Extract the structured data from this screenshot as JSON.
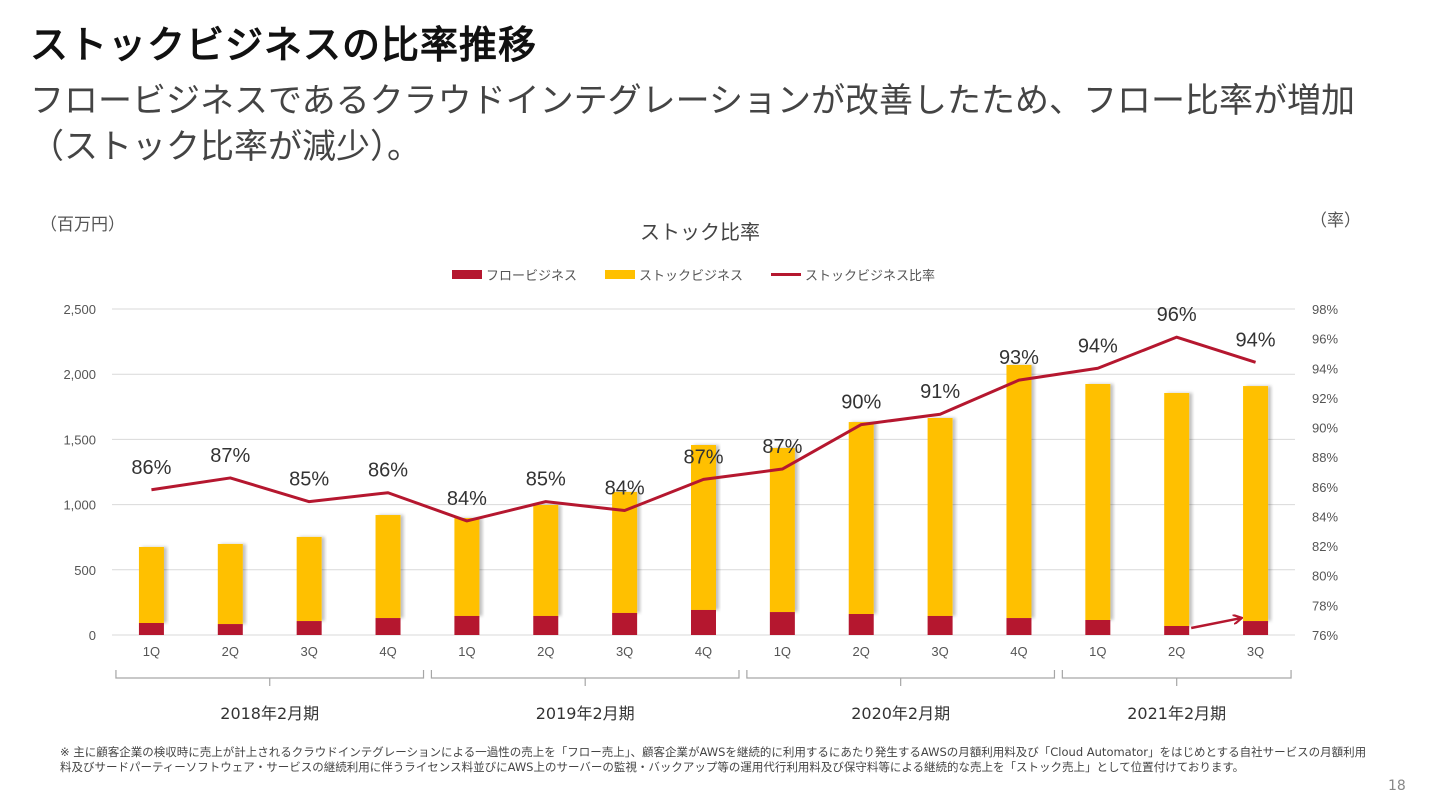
{
  "slide": {
    "title": "ストックビジネスの比率推移",
    "subtitle": "フロービジネスであるクラウドインテグレーションが改善したため、フロー比率が増加（ストック比率が減少）。",
    "footnote": "※ 主に顧客企業の検収時に売上が計上されるクラウドインテグレーションによる一過性の売上を「フロー売上」、顧客企業がAWSを継続的に利用するにあたり発生するAWSの月額利用料及び「Cloud Automator」をはじめとする自社サービスの月額利用料及びサードパーティーソフトウェア・サービスの継続利用に伴うライセンス料並びにAWS上のサーバーの監視・バックアップ等の運用代行利用料及び保守料等による継続的な売上を「ストック売上」として位置付けております。",
    "page_number": "18"
  },
  "colors": {
    "flow": "#B5172F",
    "stock": "#FFC000",
    "ratio_line": "#B5172F",
    "grid": "#D9D9D9",
    "bracket": "#A6A6A6"
  },
  "chart_data": {
    "type": "bar",
    "stacked": true,
    "title": "ストック比率",
    "ylabel": "（百万円）",
    "y2label": "（率）",
    "ylim": [
      0,
      2500
    ],
    "yticks": [
      0,
      500,
      1000,
      1500,
      2000,
      2500
    ],
    "ytick_labels": [
      "0",
      "500",
      "1,000",
      "1,500",
      "2,000",
      "2,500"
    ],
    "y2lim": [
      76,
      98
    ],
    "y2ticks": [
      76,
      78,
      80,
      82,
      84,
      86,
      88,
      90,
      92,
      94,
      96,
      98
    ],
    "y2tick_labels": [
      "76%",
      "78%",
      "80%",
      "82%",
      "84%",
      "86%",
      "88%",
      "90%",
      "92%",
      "94%",
      "96%",
      "98%"
    ],
    "grid": true,
    "legend_position": "top-center",
    "categories": [
      "1Q",
      "2Q",
      "3Q",
      "4Q",
      "1Q",
      "2Q",
      "3Q",
      "4Q",
      "1Q",
      "2Q",
      "3Q",
      "4Q",
      "1Q",
      "2Q",
      "3Q"
    ],
    "groups": [
      {
        "label": "2018年2月期",
        "count": 4
      },
      {
        "label": "2019年2月期",
        "count": 4
      },
      {
        "label": "2020年2月期",
        "count": 4
      },
      {
        "label": "2021年2月期",
        "count": 3
      }
    ],
    "series": [
      {
        "name": "フロービジネス",
        "type": "bar",
        "axis": "left",
        "values": [
          92,
          84,
          107,
          130,
          146,
          146,
          169,
          192,
          176,
          161,
          146,
          130,
          115,
          69,
          107
        ]
      },
      {
        "name": "ストックビジネス",
        "type": "bar",
        "axis": "left",
        "values": [
          583,
          614,
          645,
          790,
          751,
          851,
          928,
          1265,
          1258,
          1472,
          1518,
          1941,
          1810,
          1787,
          1802
        ]
      },
      {
        "name": "ストックビジネス比率",
        "type": "line",
        "axis": "right",
        "values": [
          85.8,
          86.6,
          85.0,
          85.6,
          83.7,
          85.0,
          84.4,
          86.5,
          87.2,
          90.2,
          90.9,
          93.2,
          94.0,
          96.1,
          94.4
        ],
        "data_labels": [
          "86%",
          "87%",
          "85%",
          "86%",
          "84%",
          "85%",
          "84%",
          "87%",
          "87%",
          "90%",
          "91%",
          "93%",
          "94%",
          "96%",
          "94%"
        ]
      }
    ],
    "annotations": [
      {
        "type": "arrow",
        "from_category_index": 13,
        "to_category_index": 14,
        "meaning": "flow business increase"
      }
    ]
  }
}
